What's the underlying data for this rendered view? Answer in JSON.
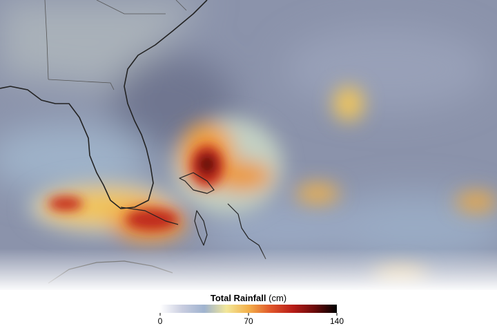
{
  "map": {
    "legend": {
      "title": "Total Rainfall",
      "unit": "(cm)",
      "range": [
        0,
        140
      ],
      "ticks": [
        0,
        70,
        140
      ],
      "colors": [
        "#ffffff",
        "#c9cde0",
        "#9fb3cf",
        "#f2e79a",
        "#f3b04a",
        "#e0562a",
        "#b81d18",
        "#6a0a0a",
        "#000000"
      ]
    }
  }
}
